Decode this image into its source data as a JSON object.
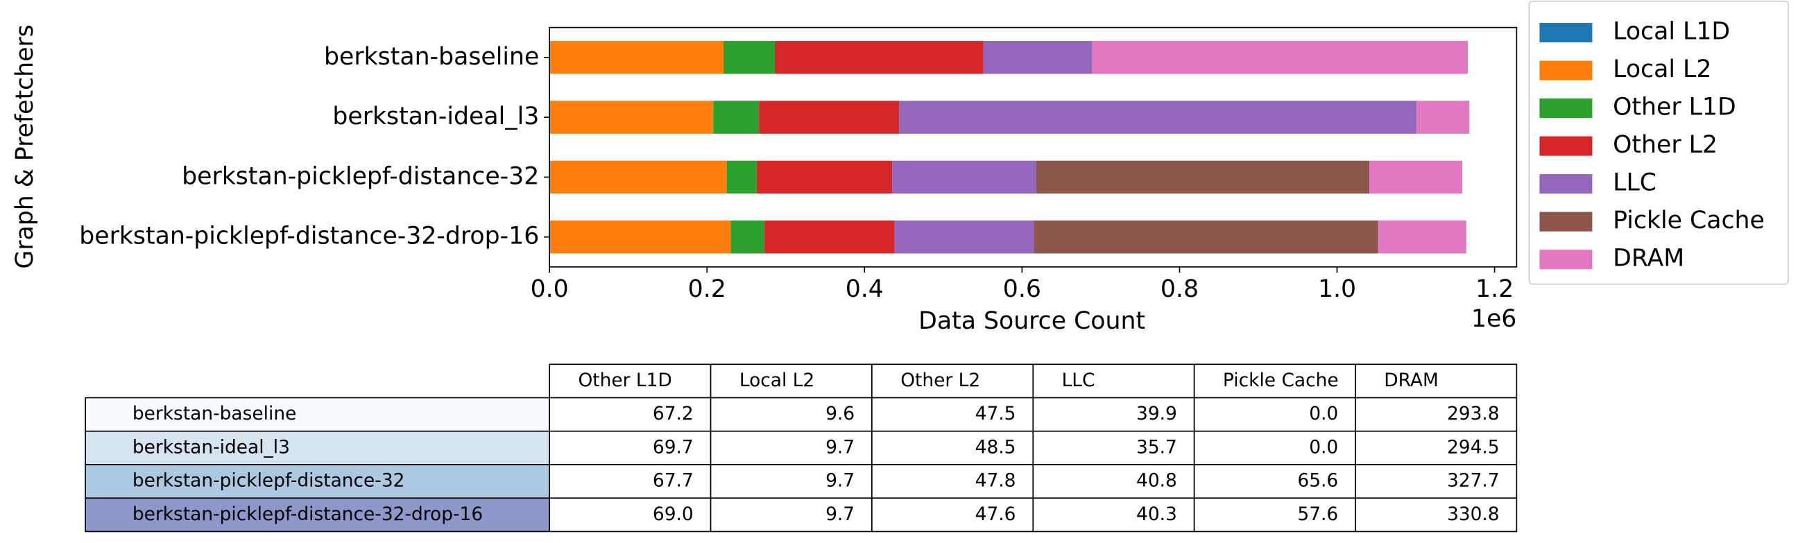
{
  "chart_data": {
    "type": "bar",
    "orientation": "horizontal",
    "stacked": true,
    "xlabel": "Data Source Count",
    "ylabel": "Graph & Prefetchers",
    "offset_label": "1e6",
    "categories": [
      "berkstan-baseline",
      "berkstan-ideal_l3",
      "berkstan-picklepf-distance-32",
      "berkstan-picklepf-distance-32-drop-16"
    ],
    "series": [
      {
        "name": "Local L1D",
        "color": "#1f77b4",
        "values": [
          0,
          0,
          0,
          0
        ]
      },
      {
        "name": "Local L2",
        "color": "#ff7f0e",
        "values": [
          0.221,
          0.208,
          0.225,
          0.23
        ]
      },
      {
        "name": "Other L1D",
        "color": "#2ca02c",
        "values": [
          0.065,
          0.058,
          0.038,
          0.043
        ]
      },
      {
        "name": "Other L2",
        "color": "#d62728",
        "values": [
          0.265,
          0.178,
          0.172,
          0.165
        ]
      },
      {
        "name": "LLC",
        "color": "#9467bd",
        "values": [
          0.138,
          0.657,
          0.183,
          0.177
        ]
      },
      {
        "name": "Pickle Cache",
        "color": "#8c564b",
        "values": [
          0,
          0,
          0.423,
          0.437
        ]
      },
      {
        "name": "DRAM",
        "color": "#e377c2",
        "values": [
          0.477,
          0.067,
          0.118,
          0.112
        ]
      }
    ],
    "xlim": [
      0,
      1.228
    ],
    "xticks": [
      {
        "value": 0,
        "label": "0.0"
      },
      0.2,
      0.4,
      0.6,
      0.8,
      {
        "value": 1,
        "label": "1.0"
      },
      1.2
    ],
    "legend": "outside-upper-right"
  },
  "table": {
    "columns": [
      "Other L1D",
      "Local L2",
      "Other L2",
      "LLC",
      "Pickle Cache",
      "DRAM"
    ],
    "rows": [
      {
        "label": "berkstan-baseline",
        "color": "#f7fbff",
        "cells": [
          "67.2",
          "9.6",
          "47.5",
          "39.9",
          "0.0",
          "293.8"
        ]
      },
      {
        "label": "berkstan-ideal_l3",
        "color": "#d6e4f0",
        "cells": [
          "69.7",
          "9.7",
          "48.5",
          "35.7",
          "0.0",
          "294.5"
        ]
      },
      {
        "label": "berkstan-picklepf-distance-32",
        "color": "#abc9e1",
        "cells": [
          "67.7",
          "9.7",
          "47.8",
          "40.8",
          "65.6",
          "327.7"
        ]
      },
      {
        "label": "berkstan-picklepf-distance-32-drop-16",
        "color": "#8d97c9",
        "cells": [
          "69.0",
          "9.7",
          "47.6",
          "40.3",
          "57.6",
          "330.8"
        ]
      }
    ]
  }
}
